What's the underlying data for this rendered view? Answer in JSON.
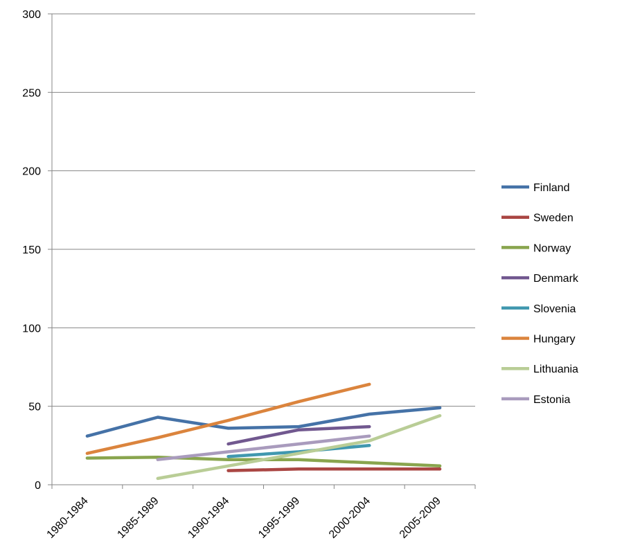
{
  "chart_data": {
    "type": "line",
    "title": "",
    "xlabel": "",
    "ylabel": "",
    "ylim": [
      0,
      300
    ],
    "y_ticks": [
      0,
      50,
      100,
      150,
      200,
      250,
      300
    ],
    "grid": "horizontal",
    "legend_position": "right",
    "categories": [
      "1980-1984",
      "1985-1989",
      "1990-1994",
      "1995-1999",
      "2000-2004",
      "2005-2009"
    ],
    "series": [
      {
        "name": "Finland",
        "color": "#4572A7",
        "values": [
          31,
          43,
          36,
          37,
          45,
          49
        ]
      },
      {
        "name": "Sweden",
        "color": "#AA4643",
        "values": [
          null,
          null,
          9,
          10,
          10,
          10
        ]
      },
      {
        "name": "Norway",
        "color": "#89A54E",
        "values": [
          17,
          17.5,
          16,
          16,
          14,
          12
        ]
      },
      {
        "name": "Denmark",
        "color": "#71588F",
        "values": [
          null,
          null,
          26,
          35,
          37,
          null
        ]
      },
      {
        "name": "Slovenia",
        "color": "#4198AF",
        "values": [
          null,
          null,
          18,
          21,
          25,
          null
        ]
      },
      {
        "name": "Hungary",
        "color": "#DB843D",
        "values": [
          20,
          30,
          41,
          53,
          64,
          null
        ]
      },
      {
        "name": "Lithuania",
        "color": "#B9CD96",
        "values": [
          null,
          4,
          12,
          20,
          28,
          44
        ]
      },
      {
        "name": "Estonia",
        "color": "#A99BBD",
        "values": [
          null,
          16,
          21,
          26,
          31,
          null
        ]
      }
    ]
  }
}
